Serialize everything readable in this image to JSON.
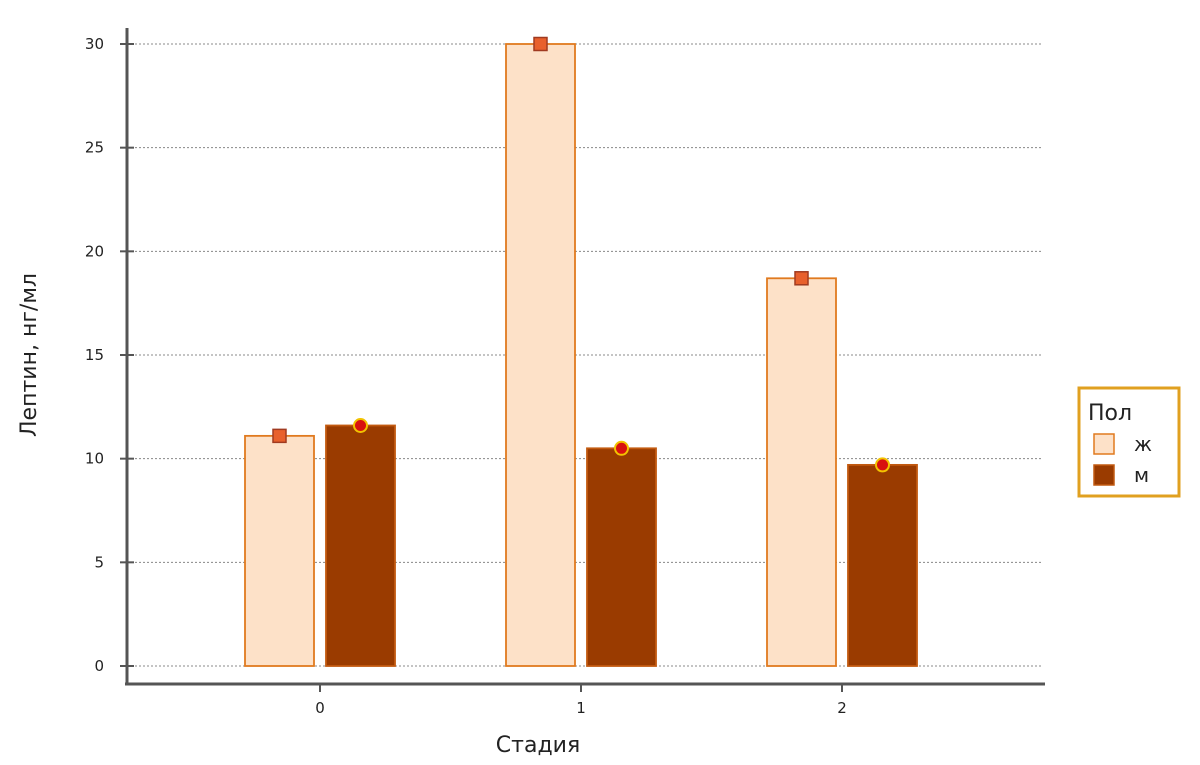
{
  "chart_data": {
    "type": "bar",
    "xlabel": "Стадия",
    "ylabel": "Лептин, нг/мл",
    "categories": [
      "0",
      "1",
      "2"
    ],
    "series": [
      {
        "name": "ж",
        "values": [
          11.1,
          30.0,
          18.7
        ],
        "fill": "#fde1c8",
        "stroke": "#e07a1f",
        "marker": "square",
        "marker_color": "#e8602c"
      },
      {
        "name": "м",
        "values": [
          11.6,
          10.5,
          9.7
        ],
        "fill": "#9a3b00",
        "stroke": "#c25a10",
        "marker": "circle",
        "marker_color": "#d8110f"
      }
    ],
    "ylim": [
      0,
      30
    ],
    "yticks": [
      0,
      5,
      10,
      15,
      20,
      25,
      30
    ],
    "grid": true,
    "legend": {
      "title": "Пол",
      "position": "right",
      "border_color": "#e0a020"
    }
  }
}
